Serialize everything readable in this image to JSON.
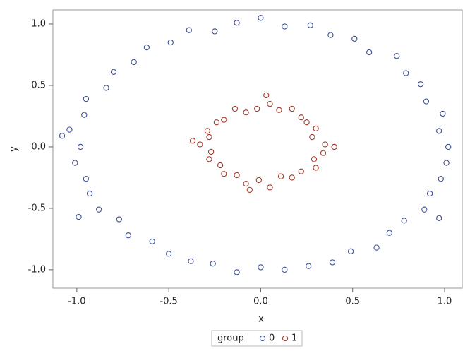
{
  "chart_data": {
    "type": "scatter",
    "x_label": "x",
    "y_label": "y",
    "legend_title": "group",
    "legend_position": "bottom",
    "xlim": [
      -1.13,
      1.096
    ],
    "ylim": [
      -1.15,
      1.115
    ],
    "xticks": [
      {
        "value": -1,
        "label": "-1.0"
      },
      {
        "value": -0.5,
        "label": "-0.5"
      },
      {
        "value": 0,
        "label": "0.0"
      },
      {
        "value": 0.5,
        "label": "0.5"
      },
      {
        "value": 1,
        "label": "1.0"
      }
    ],
    "yticks": [
      {
        "value": -1,
        "label": "-1.0"
      },
      {
        "value": -0.5,
        "label": "-0.5"
      },
      {
        "value": 0,
        "label": "0.0"
      },
      {
        "value": 0.5,
        "label": "0.5"
      },
      {
        "value": 1,
        "label": "1.0"
      }
    ],
    "grid": false,
    "series": [
      {
        "name": "0",
        "color": "#3e4f94",
        "x": [
          1.02,
          0.97,
          0.99,
          0.9,
          0.87,
          0.79,
          0.74,
          0.59,
          0.51,
          0.38,
          0.27,
          0.13,
          0.0,
          -0.13,
          -0.25,
          -0.39,
          -0.49,
          -0.62,
          -0.69,
          -0.8,
          -0.84,
          -0.95,
          -0.96,
          -1.04,
          -0.98,
          -1.01,
          -0.95,
          -0.93,
          -0.88,
          -0.77,
          -0.72,
          -0.59,
          -0.5,
          -0.38,
          -0.26,
          -0.13,
          0.0,
          0.13,
          0.26,
          0.39,
          0.49,
          0.63,
          0.7,
          0.78,
          0.89,
          0.92,
          0.98,
          1.01,
          -1.08,
          -0.99,
          0.97
        ],
        "values": [
          0.0,
          0.13,
          0.27,
          0.37,
          0.51,
          0.6,
          0.74,
          0.77,
          0.88,
          0.91,
          0.99,
          0.98,
          1.05,
          1.01,
          0.94,
          0.95,
          0.85,
          0.81,
          0.69,
          0.61,
          0.48,
          0.39,
          0.26,
          0.14,
          0.0,
          -0.13,
          -0.26,
          -0.38,
          -0.51,
          -0.59,
          -0.72,
          -0.77,
          -0.87,
          -0.93,
          -0.95,
          -1.02,
          -0.98,
          -1.0,
          -0.97,
          -0.94,
          -0.85,
          -0.82,
          -0.7,
          -0.6,
          -0.51,
          -0.38,
          -0.26,
          -0.13,
          0.09,
          -0.57,
          -0.58
        ]
      },
      {
        "name": "1",
        "color": "#a33a2b",
        "x": [
          0.35,
          0.28,
          0.3,
          0.25,
          0.22,
          0.17,
          0.1,
          0.05,
          -0.02,
          -0.08,
          -0.14,
          -0.2,
          -0.24,
          -0.29,
          -0.28,
          -0.33,
          -0.27,
          -0.28,
          -0.22,
          -0.2,
          -0.13,
          -0.08,
          -0.01,
          0.05,
          0.11,
          0.17,
          0.22,
          0.3,
          0.29,
          0.34,
          -0.37,
          0.4,
          0.03,
          -0.06
        ],
        "values": [
          0.02,
          0.08,
          0.15,
          0.2,
          0.24,
          0.31,
          0.3,
          0.35,
          0.31,
          0.28,
          0.31,
          0.22,
          0.2,
          0.13,
          0.08,
          0.02,
          -0.04,
          -0.1,
          -0.15,
          -0.22,
          -0.23,
          -0.3,
          -0.27,
          -0.33,
          -0.24,
          -0.25,
          -0.2,
          -0.17,
          -0.1,
          -0.05,
          0.05,
          0.0,
          0.42,
          -0.35
        ]
      }
    ]
  }
}
